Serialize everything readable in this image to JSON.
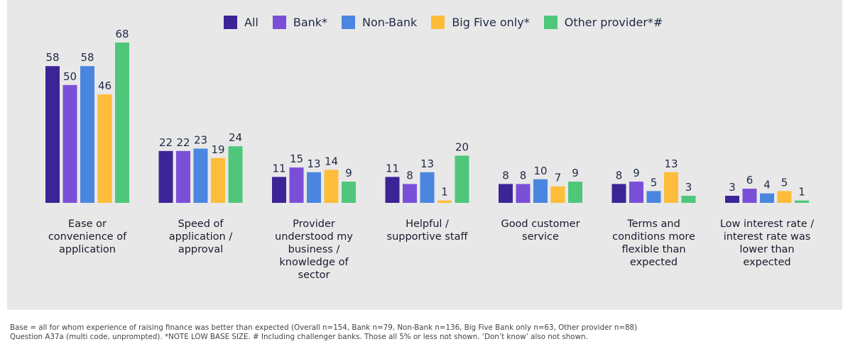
{
  "chart_data": {
    "type": "bar",
    "categories": [
      [
        "Ease or",
        "convenience of",
        "application"
      ],
      [
        "Speed of",
        "application /",
        "approval"
      ],
      [
        "Provider",
        "understood my",
        "business /",
        "knowledge of",
        "sector"
      ],
      [
        "Helpful /",
        "supportive staff"
      ],
      [
        "Good customer",
        "service"
      ],
      [
        "Terms and",
        "conditions more",
        "flexible than",
        "expected"
      ],
      [
        "Low interest rate /",
        "interest rate was",
        "lower than",
        "expected"
      ]
    ],
    "series": [
      {
        "name": "All",
        "color": "#3d2496",
        "values": [
          58,
          22,
          11,
          11,
          8,
          8,
          3
        ]
      },
      {
        "name": "Bank*",
        "color": "#7a4fd8",
        "values": [
          50,
          22,
          15,
          8,
          8,
          9,
          6
        ]
      },
      {
        "name": "Non-Bank",
        "color": "#4a86e0",
        "values": [
          58,
          23,
          13,
          13,
          10,
          5,
          4
        ]
      },
      {
        "name": "Big Five only*",
        "color": "#fdbd3a",
        "values": [
          46,
          19,
          14,
          1,
          7,
          13,
          5
        ]
      },
      {
        "name": "Other provider*#",
        "color": "#4ec77a",
        "values": [
          68,
          24,
          9,
          20,
          9,
          3,
          1
        ]
      }
    ],
    "ylim": [
      0,
      68
    ],
    "legend_position": "top-center",
    "grid": false
  },
  "footnote": {
    "line1": "Base = all for whom experience of raising finance was better than expected (Overall n=154, Bank n=79, Non-Bank n=136, Big Five Bank only n=63, Other provider n=88)",
    "line2": "Question A37a (multi code, unprompted). *NOTE LOW BASE SIZE. # Including challenger banks. Those all 5% or less not shown. ‘Don’t know’ also not shown."
  }
}
